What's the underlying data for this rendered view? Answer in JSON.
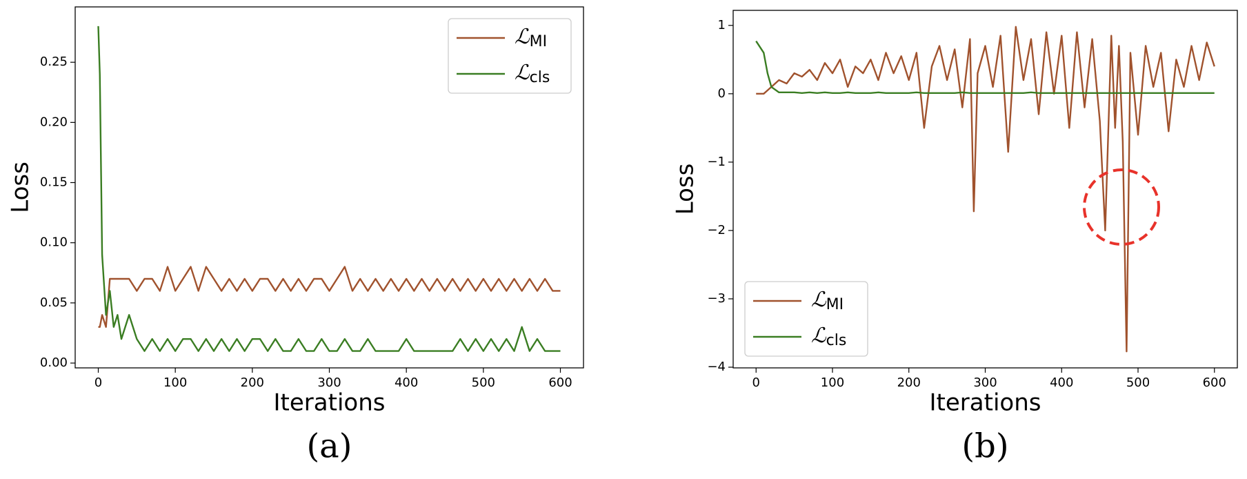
{
  "chart_data": [
    {
      "type": "line",
      "panel_label": "(a)",
      "x_label": "Iterations",
      "y_label": "Loss",
      "x": [
        0,
        2,
        5,
        10,
        15,
        20,
        25,
        30,
        40,
        50,
        60,
        70,
        80,
        90,
        100,
        110,
        120,
        130,
        140,
        150,
        160,
        170,
        180,
        190,
        200,
        210,
        220,
        230,
        240,
        250,
        260,
        270,
        280,
        290,
        300,
        310,
        320,
        330,
        340,
        350,
        360,
        370,
        380,
        390,
        400,
        410,
        420,
        430,
        440,
        450,
        460,
        470,
        480,
        490,
        500,
        510,
        520,
        530,
        540,
        550,
        560,
        570,
        580,
        590,
        600
      ],
      "series": [
        {
          "name": "ℒMI",
          "color": "#a0522d",
          "values": [
            0.03,
            0.03,
            0.04,
            0.03,
            0.07,
            0.07,
            0.07,
            0.07,
            0.07,
            0.06,
            0.07,
            0.07,
            0.06,
            0.08,
            0.06,
            0.07,
            0.08,
            0.06,
            0.08,
            0.07,
            0.06,
            0.07,
            0.06,
            0.07,
            0.06,
            0.07,
            0.07,
            0.06,
            0.07,
            0.06,
            0.07,
            0.06,
            0.07,
            0.07,
            0.06,
            0.07,
            0.08,
            0.06,
            0.07,
            0.06,
            0.07,
            0.06,
            0.07,
            0.06,
            0.07,
            0.06,
            0.07,
            0.06,
            0.07,
            0.06,
            0.07,
            0.06,
            0.07,
            0.06,
            0.07,
            0.06,
            0.07,
            0.06,
            0.07,
            0.06,
            0.07,
            0.06,
            0.07,
            0.06,
            0.06
          ]
        },
        {
          "name": "ℒcls",
          "color": "#3a7d22",
          "values": [
            0.28,
            0.24,
            0.09,
            0.04,
            0.06,
            0.03,
            0.04,
            0.02,
            0.04,
            0.02,
            0.01,
            0.02,
            0.01,
            0.02,
            0.01,
            0.02,
            0.02,
            0.01,
            0.02,
            0.01,
            0.02,
            0.01,
            0.02,
            0.01,
            0.02,
            0.02,
            0.01,
            0.02,
            0.01,
            0.01,
            0.02,
            0.01,
            0.01,
            0.02,
            0.01,
            0.01,
            0.02,
            0.01,
            0.01,
            0.02,
            0.01,
            0.01,
            0.01,
            0.01,
            0.02,
            0.01,
            0.01,
            0.01,
            0.01,
            0.01,
            0.01,
            0.02,
            0.01,
            0.02,
            0.01,
            0.02,
            0.01,
            0.02,
            0.01,
            0.03,
            0.01,
            0.02,
            0.01,
            0.01,
            0.01
          ]
        }
      ],
      "xlim": [
        -30,
        630
      ],
      "xticks": [
        0,
        100,
        200,
        300,
        400,
        500,
        600
      ],
      "ylim": [
        -0.004,
        0.296
      ],
      "yticks": [
        {
          "value": 0,
          "label": "0.00"
        },
        {
          "value": 0.05,
          "label": "0.05"
        },
        {
          "value": 0.1,
          "label": "0.10"
        },
        {
          "value": 0.15,
          "label": "0.15"
        },
        {
          "value": 0.2,
          "label": "0.20"
        },
        {
          "value": 0.25,
          "label": "0.25"
        }
      ],
      "legend": "upper right"
    },
    {
      "type": "line",
      "panel_label": "(b)",
      "x_label": "Iterations",
      "y_label": "Loss",
      "x": [
        0,
        10,
        15,
        20,
        30,
        40,
        50,
        60,
        70,
        80,
        90,
        100,
        110,
        120,
        130,
        140,
        150,
        160,
        170,
        180,
        190,
        200,
        210,
        220,
        230,
        240,
        250,
        260,
        270,
        280,
        285,
        290,
        300,
        310,
        320,
        330,
        340,
        350,
        360,
        370,
        380,
        390,
        400,
        410,
        420,
        430,
        440,
        450,
        457,
        465,
        470,
        475,
        480,
        485,
        490,
        500,
        510,
        520,
        530,
        540,
        550,
        560,
        570,
        580,
        590,
        600
      ],
      "series": [
        {
          "name": "ℒMI",
          "color": "#a0522d",
          "values": [
            0,
            0,
            0.05,
            0.1,
            0.2,
            0.15,
            0.3,
            0.25,
            0.35,
            0.2,
            0.45,
            0.3,
            0.5,
            0.1,
            0.4,
            0.3,
            0.5,
            0.2,
            0.6,
            0.3,
            0.55,
            0.2,
            0.6,
            -0.5,
            0.4,
            0.7,
            0.2,
            0.65,
            -0.2,
            0.8,
            -1.72,
            0.3,
            0.7,
            0.1,
            0.85,
            -0.85,
            0.98,
            0.2,
            0.8,
            -0.3,
            0.9,
            0,
            0.85,
            -0.5,
            0.9,
            -0.2,
            0.8,
            -0.4,
            -2.0,
            0.85,
            -0.5,
            0.7,
            -0.7,
            -3.77,
            0.6,
            -0.6,
            0.7,
            0.1,
            0.6,
            -0.55,
            0.5,
            0.1,
            0.7,
            0.2,
            0.75,
            0.4
          ]
        },
        {
          "name": "ℒcls",
          "color": "#3a7d22",
          "values": [
            0.77,
            0.6,
            0.3,
            0.1,
            0.02,
            0.02,
            0.02,
            0.01,
            0.02,
            0.01,
            0.02,
            0.01,
            0.01,
            0.02,
            0.01,
            0.01,
            0.01,
            0.02,
            0.01,
            0.01,
            0.01,
            0.01,
            0.02,
            0.01,
            0.01,
            0.01,
            0.01,
            0.01,
            0.02,
            0.01,
            0.01,
            0.01,
            0.01,
            0.01,
            0.01,
            0.01,
            0.01,
            0.01,
            0.02,
            0.01,
            0.01,
            0.01,
            0.01,
            0.01,
            0.01,
            0.01,
            0.01,
            0.01,
            0.01,
            0.01,
            0.01,
            0.01,
            0.01,
            0.01,
            0.01,
            0.01,
            0.01,
            0.01,
            0.01,
            0.01,
            0.01,
            0.01,
            0.01,
            0.01,
            0.01,
            0.01
          ]
        }
      ],
      "xlim": [
        -30,
        630
      ],
      "xticks": [
        0,
        100,
        200,
        300,
        400,
        500,
        600
      ],
      "ylim": [
        -4.01,
        1.22
      ],
      "yticks": [
        {
          "value": -4,
          "label": "−4"
        },
        {
          "value": -3,
          "label": "−3"
        },
        {
          "value": -2,
          "label": "−2"
        },
        {
          "value": -1,
          "label": "−1"
        },
        0,
        1
      ],
      "legend": "lower left"
    }
  ]
}
